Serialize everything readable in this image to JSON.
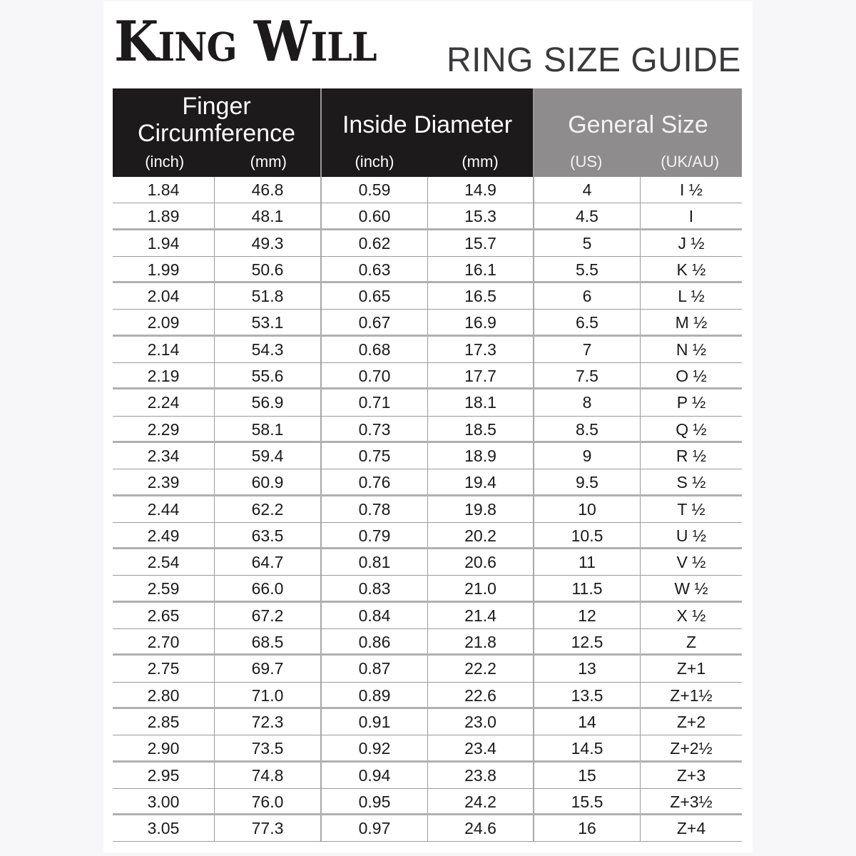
{
  "brand": {
    "logo_text": "King Will",
    "title": "RING SIZE GUIDE"
  },
  "colors": {
    "header_dark": "#1c1a1b",
    "header_gray": "#8e8c8d",
    "page_background": "#f7f6f8",
    "panel_background": "#ffffff",
    "grid_line": "#9c9c9c"
  },
  "table": {
    "groups": [
      {
        "title": "Finger Circumference",
        "units": [
          "(inch)",
          "(mm)"
        ]
      },
      {
        "title": "Inside Diameter",
        "units": [
          "(inch)",
          "(mm)"
        ]
      },
      {
        "title": "General Size",
        "units": [
          "(US)",
          "(UK/AU)"
        ]
      }
    ],
    "columns": [
      "Finger Circumference (inch)",
      "Finger Circumference (mm)",
      "Inside Diameter (inch)",
      "Inside Diameter (mm)",
      "General Size (US)",
      "General Size (UK/AU)"
    ],
    "rows": [
      [
        "1.84",
        "46.8",
        "0.59",
        "14.9",
        "4",
        "I ½"
      ],
      [
        "1.89",
        "48.1",
        "0.60",
        "15.3",
        "4.5",
        "I"
      ],
      [
        "1.94",
        "49.3",
        "0.62",
        "15.7",
        "5",
        "J ½"
      ],
      [
        "1.99",
        "50.6",
        "0.63",
        "16.1",
        "5.5",
        "K ½"
      ],
      [
        "2.04",
        "51.8",
        "0.65",
        "16.5",
        "6",
        "L ½"
      ],
      [
        "2.09",
        "53.1",
        "0.67",
        "16.9",
        "6.5",
        "M ½"
      ],
      [
        "2.14",
        "54.3",
        "0.68",
        "17.3",
        "7",
        "N ½"
      ],
      [
        "2.19",
        "55.6",
        "0.70",
        "17.7",
        "7.5",
        "O ½"
      ],
      [
        "2.24",
        "56.9",
        "0.71",
        "18.1",
        "8",
        "P ½"
      ],
      [
        "2.29",
        "58.1",
        "0.73",
        "18.5",
        "8.5",
        "Q ½"
      ],
      [
        "2.34",
        "59.4",
        "0.75",
        "18.9",
        "9",
        "R ½"
      ],
      [
        "2.39",
        "60.9",
        "0.76",
        "19.4",
        "9.5",
        "S ½"
      ],
      [
        "2.44",
        "62.2",
        "0.78",
        "19.8",
        "10",
        "T ½"
      ],
      [
        "2.49",
        "63.5",
        "0.79",
        "20.2",
        "10.5",
        "U ½"
      ],
      [
        "2.54",
        "64.7",
        "0.81",
        "20.6",
        "11",
        "V ½"
      ],
      [
        "2.59",
        "66.0",
        "0.83",
        "21.0",
        "11.5",
        "W ½"
      ],
      [
        "2.65",
        "67.2",
        "0.84",
        "21.4",
        "12",
        "X ½"
      ],
      [
        "2.70",
        "68.5",
        "0.86",
        "21.8",
        "12.5",
        "Z"
      ],
      [
        "2.75",
        "69.7",
        "0.87",
        "22.2",
        "13",
        "Z+1"
      ],
      [
        "2.80",
        "71.0",
        "0.89",
        "22.6",
        "13.5",
        "Z+1½"
      ],
      [
        "2.85",
        "72.3",
        "0.91",
        "23.0",
        "14",
        "Z+2"
      ],
      [
        "2.90",
        "73.5",
        "0.92",
        "23.4",
        "14.5",
        "Z+2½"
      ],
      [
        "2.95",
        "74.8",
        "0.94",
        "23.8",
        "15",
        "Z+3"
      ],
      [
        "3.00",
        "76.0",
        "0.95",
        "24.2",
        "15.5",
        "Z+3½"
      ],
      [
        "3.05",
        "77.3",
        "0.97",
        "24.6",
        "16",
        "Z+4"
      ]
    ]
  }
}
